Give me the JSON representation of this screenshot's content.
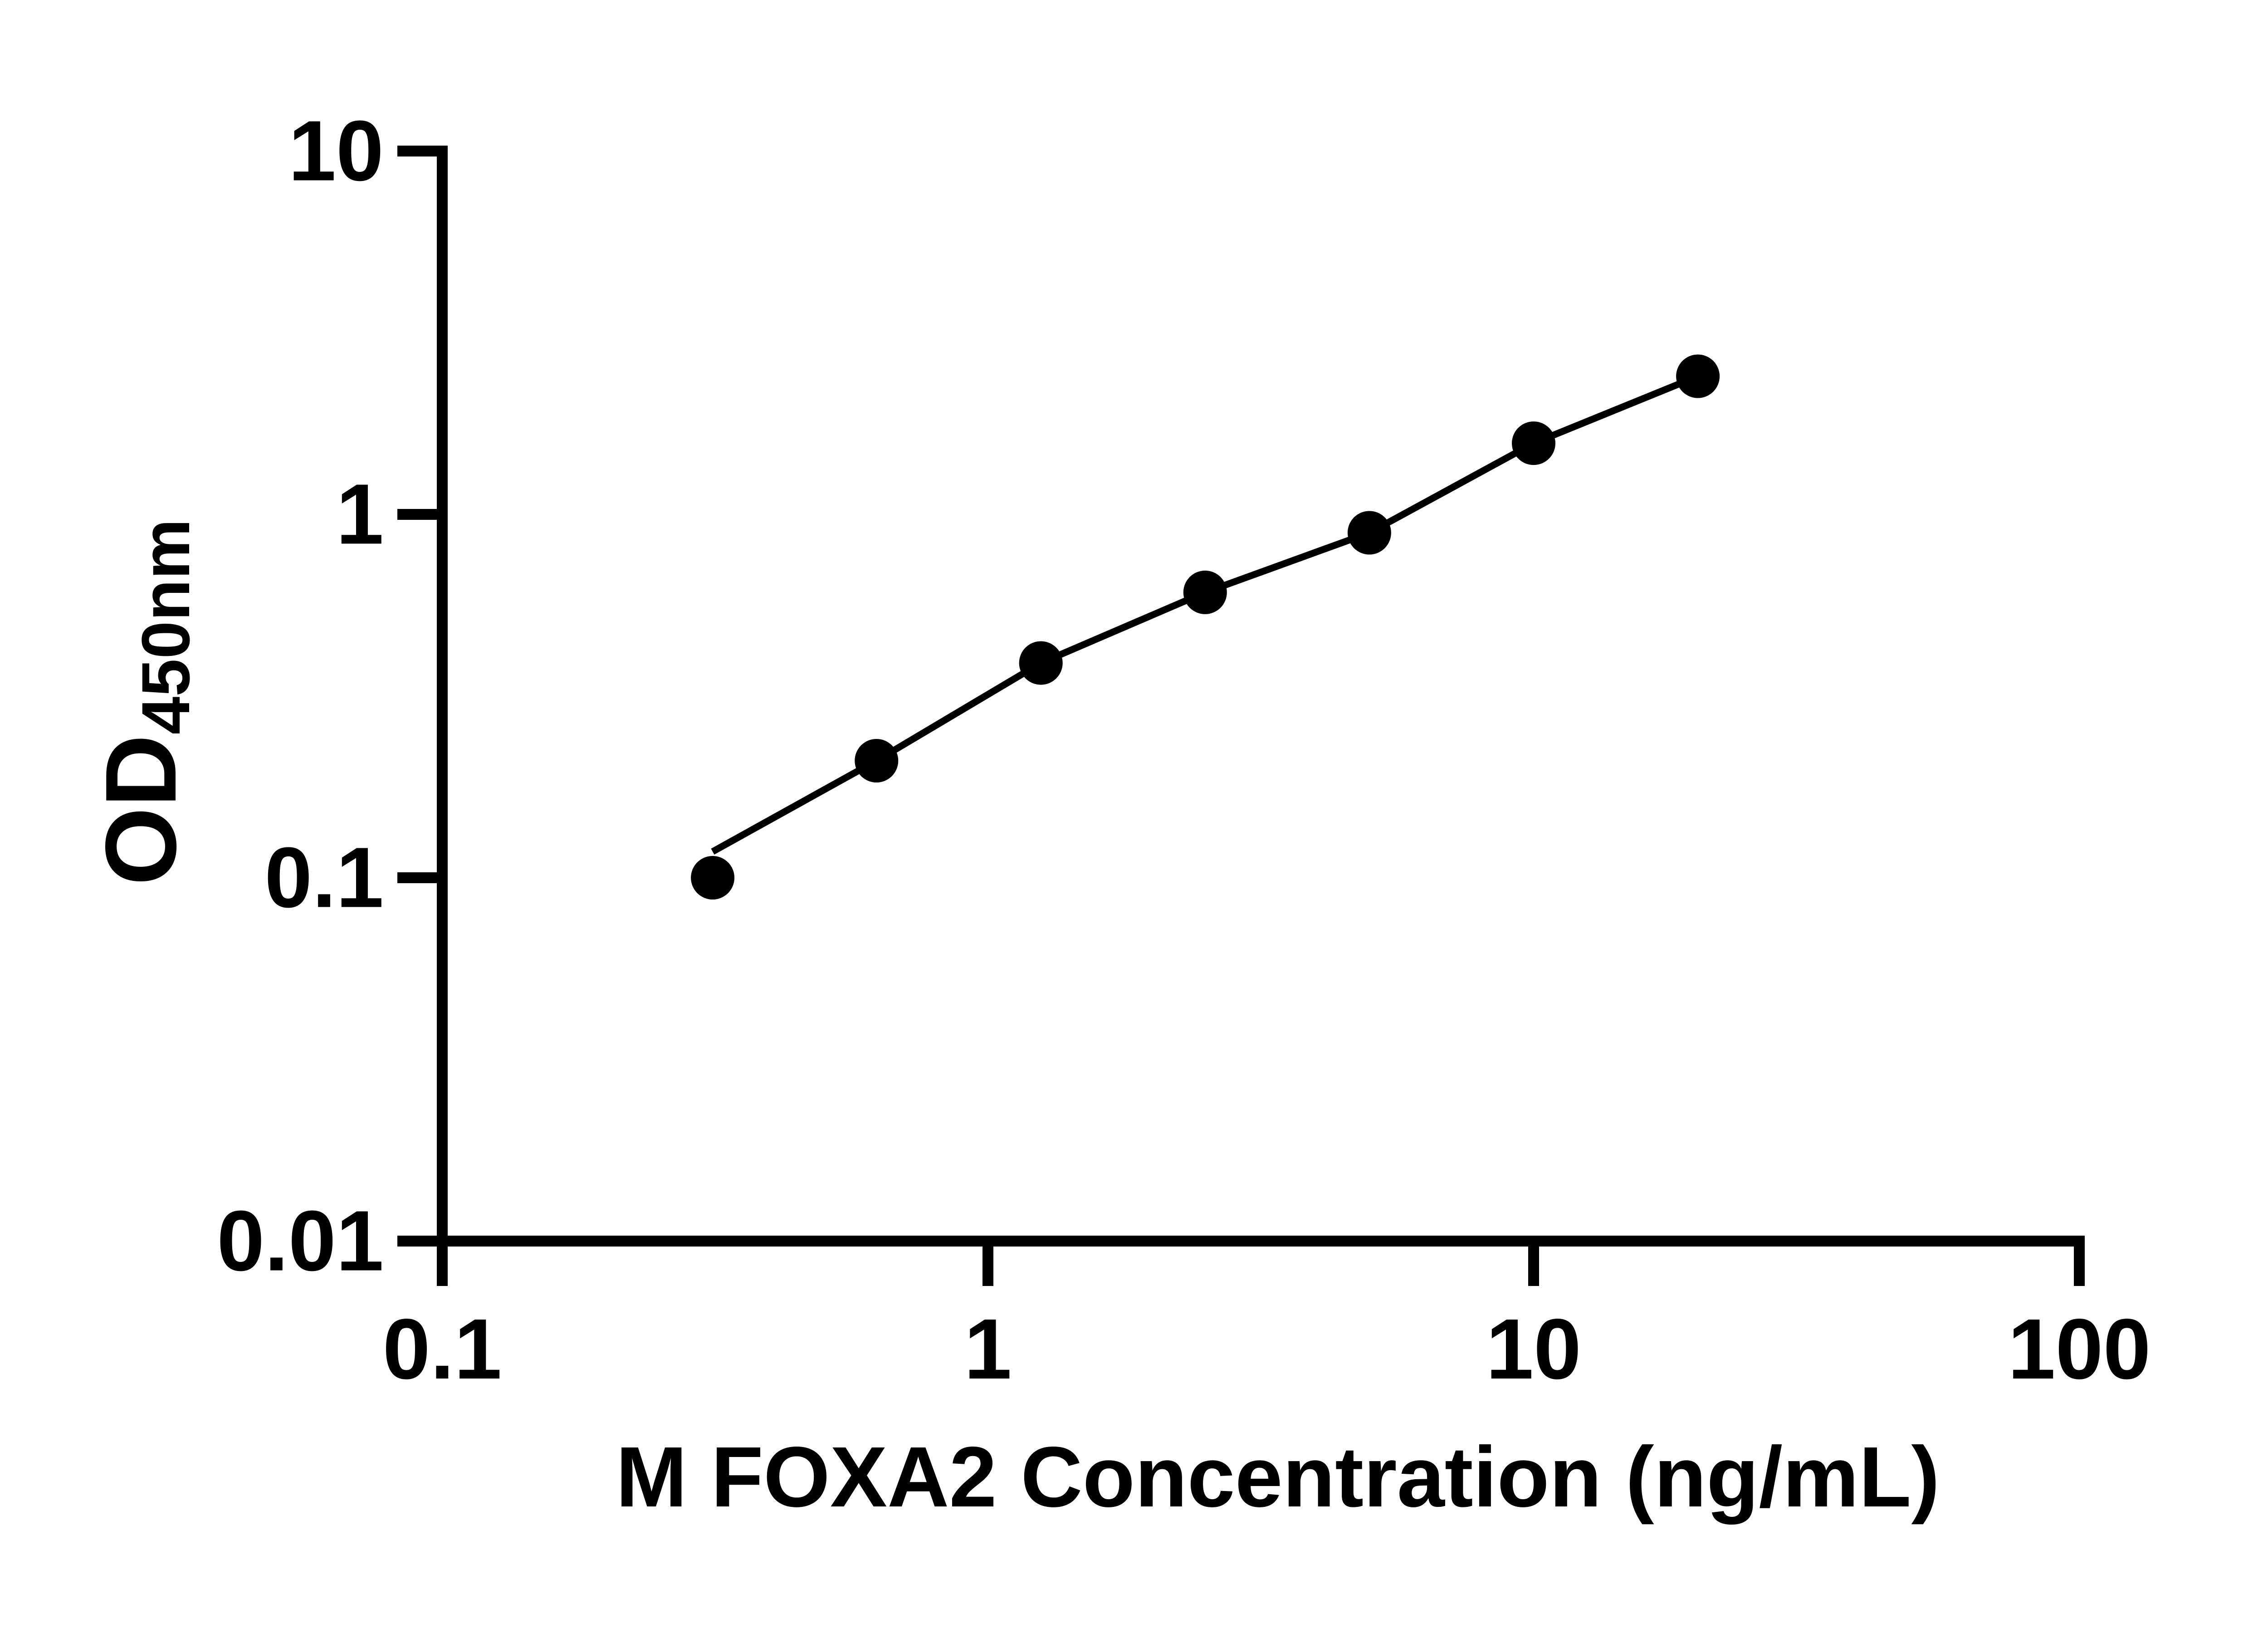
{
  "figure": {
    "background_color": "#ffffff",
    "ink_color": "#000000"
  },
  "chart_data": {
    "type": "scatter",
    "title": "",
    "xlabel": "M FOXA2 Concentration (ng/mL)",
    "ylabel_main": "OD",
    "ylabel_sub": "450nm",
    "x_scale": "log",
    "y_scale": "log",
    "xlim": [
      0.1,
      100
    ],
    "ylim": [
      0.01,
      10
    ],
    "grid": false,
    "legend": "none",
    "marker": {
      "shape": "circle",
      "color": "#000000"
    },
    "line_color": "#000000",
    "x_ticks": [
      {
        "value": 0.1,
        "label": "0.1"
      },
      {
        "value": 1,
        "label": "1"
      },
      {
        "value": 10,
        "label": "10"
      },
      {
        "value": 100,
        "label": "100"
      }
    ],
    "y_ticks": [
      {
        "value": 10,
        "label": "10"
      },
      {
        "value": 1,
        "label": "1"
      },
      {
        "value": 0.1,
        "label": "0.1"
      },
      {
        "value": 0.01,
        "label": "0.01"
      }
    ],
    "points": [
      {
        "x": 0.313,
        "y": 0.1
      },
      {
        "x": 0.625,
        "y": 0.21
      },
      {
        "x": 1.25,
        "y": 0.39
      },
      {
        "x": 2.5,
        "y": 0.61
      },
      {
        "x": 5,
        "y": 0.89
      },
      {
        "x": 10,
        "y": 1.57
      },
      {
        "x": 20,
        "y": 2.4
      }
    ],
    "fit_line": [
      {
        "x": 0.313,
        "y": 0.118
      },
      {
        "x": 0.625,
        "y": 0.21
      },
      {
        "x": 1.25,
        "y": 0.39
      },
      {
        "x": 2.5,
        "y": 0.61
      },
      {
        "x": 5,
        "y": 0.89
      },
      {
        "x": 10,
        "y": 1.57
      },
      {
        "x": 20,
        "y": 2.4
      }
    ]
  }
}
